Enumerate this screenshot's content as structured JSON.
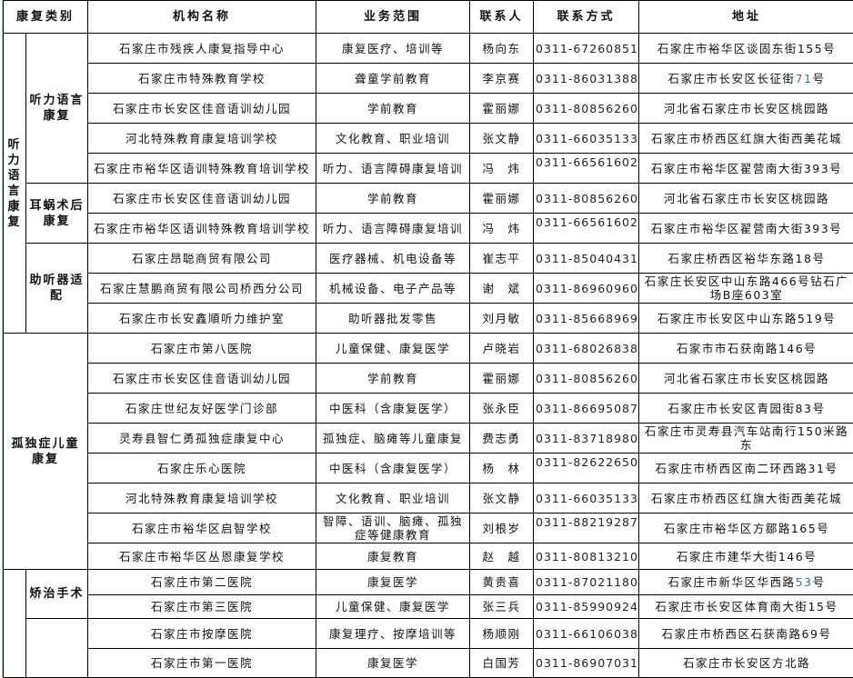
{
  "header": [
    "康复类别",
    "机构名称",
    "业务范围",
    "联系人",
    "联系方式",
    "地址"
  ],
  "categories": {
    "hearing_language": "听力语言康复",
    "hearing_language_sub": "听力语言康复",
    "cochlear": "耳蜗术后康复",
    "hearing_aid": "助听器适配",
    "autism": "孤独症儿童康复",
    "orthopedic": "矫治手术"
  },
  "accent_colors": {
    "highlight": "#3b6db3"
  },
  "rows": [
    {
      "name": "石家庄市残疾人康复指导中心",
      "scope": "康复医疗、培训等",
      "contact": "杨向东",
      "phone": "0311-67260851",
      "address": "石家庄市裕华区谈固东街155号"
    },
    {
      "name": "石家庄市特殊教育学校",
      "scope": "聋童学前教育",
      "contact": "李京赛",
      "phone": "0311-86031388",
      "address": "石家庄市长安区长征街71号",
      "address_highlight": "71"
    },
    {
      "name": "石家庄市长安区佳音语训幼儿园",
      "scope": "学前教育",
      "contact": "霍丽娜",
      "phone": "0311-80856260",
      "address": "河北省石家庄市长安区桃园路"
    },
    {
      "name": "河北特殊教育康复培训学校",
      "scope": "文化教育、职业培训",
      "contact": "张文静",
      "phone": "0311-66035133",
      "address": "石家庄市桥西区红旗大街西美花城"
    },
    {
      "name": "石家庄市裕华区语训特殊教育培训学校",
      "scope": "听力、语言障碍康复培训",
      "contact": "冯　炜",
      "phone": "0311-66561602",
      "address": "石家庄市裕华区翟营南大街393号",
      "phone_top": true
    },
    {
      "name": "石家庄市长安区佳音语训幼儿园",
      "scope": "学前教育",
      "contact": "霍丽娜",
      "phone": "0311-80856260",
      "address": "河北省石家庄市长安区桃园路"
    },
    {
      "name": "石家庄市裕华区语训特殊教育培训学校",
      "scope": "听力、语言障碍康复培训",
      "contact": "冯　炜",
      "phone": "0311-66561602",
      "address": "石家庄市裕华区翟营南大街393号",
      "phone_top": true
    },
    {
      "name": "石家庄昂聪商贸有限公司",
      "scope": "医疗器械、机电设备等",
      "contact": "崔志平",
      "phone": "0311-85040431",
      "address": "石家庄桥西区裕华东路18号"
    },
    {
      "name": "石家庄慧鹏商贸有限公司桥西分公司",
      "scope": "机械设备、电子产品等",
      "contact": "谢　斌",
      "phone": "0311-86960960",
      "address": "石家庄长安区中山东路466号钻石广场B座603室"
    },
    {
      "name": "石家庄市长安鑫順听力维护室",
      "scope": "助听器批发零售",
      "contact": "刘月敏",
      "phone": "0311-85668969",
      "address": "石家庄市长安区中山东路519号"
    },
    {
      "name": "石家庄市第八医院",
      "scope": "儿童保健、康复医学",
      "contact": "卢晓岩",
      "phone": "0311-68026838",
      "address": "石家市市石获南路146号"
    },
    {
      "name": "石家庄市长安区佳音语训幼儿园",
      "scope": "学前教育",
      "contact": "霍丽娜",
      "phone": "0311-80856260",
      "address": "河北省石家庄市长安区桃园路"
    },
    {
      "name": "石家庄世纪友好医学门诊部",
      "scope": "中医科（含康复医学）",
      "contact": "张永臣",
      "phone": "0311-86695087",
      "address": "石家庄市长安区青园街83号"
    },
    {
      "name": "灵寿县智仁勇孤独症康复中心",
      "scope": "孤独症、脑瘫等儿童康复",
      "contact": "费志勇",
      "phone": "0311-83718980",
      "address": "石家庄市灵寿县汽车站南行150米路东",
      "phone_grey": true
    },
    {
      "name": "石家庄乐心医院",
      "scope": "中医科（含康复医学）",
      "contact": "杨　林",
      "phone": "0311-82622650",
      "address": "石家庄市桥西区南二环西路31号",
      "phone_top": true
    },
    {
      "name": "河北特殊教育康复培训学校",
      "scope": "文化教育、职业培训",
      "contact": "张文静",
      "phone": "0311-66035133",
      "address": "石家庄市桥西区红旗大街西美花城"
    },
    {
      "name": "石家庄市裕华区启智学校",
      "scope": "智障、语训、脑瘫、孤独症等健康教育",
      "contact": "刘根岁",
      "phone": "0311-88219287",
      "address": "石家庄市裕华区方鄒路165号",
      "phone_top": true
    },
    {
      "name": "石家庄市裕华区丛恩康复学校",
      "scope": "康复教育",
      "contact": "赵　越",
      "phone": "0311-80813210",
      "address": "石家庄市建华大街146号"
    },
    {
      "name": "石家庄市第二医院",
      "scope": "康复医学",
      "contact": "黄贵喜",
      "phone": "0311-87021180",
      "address": "石家庄市新华区华西路53号",
      "address_highlight": "53",
      "phone_hl": true
    },
    {
      "name": "石家庄市第三医院",
      "scope": "儿童保健、康复医学",
      "contact": "张三兵",
      "phone": "0311-85990924",
      "address": "石家庄市长安区体育南大街15号"
    },
    {
      "name": "石家庄市按摩医院",
      "scope": "康复理疗、按摩培训等",
      "contact": "杨顺刚",
      "phone": "0311-66106038",
      "address": "石家庄市桥西区石获南路69号"
    },
    {
      "name": "石家庄市第一医院",
      "scope": "康复医学",
      "contact": "白国芳",
      "phone": "0311-86907031",
      "address": "石家庄市长安区方北路"
    }
  ]
}
